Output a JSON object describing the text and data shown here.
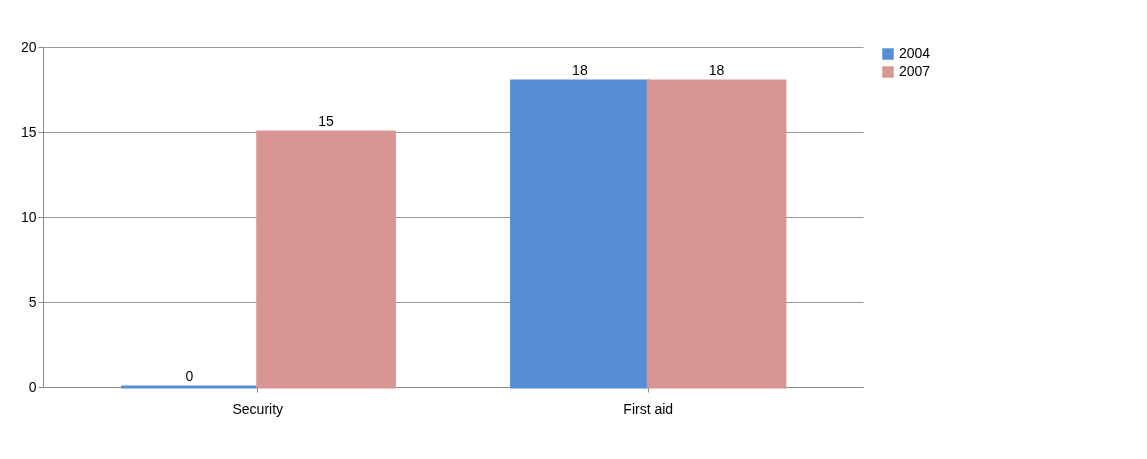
{
  "chart_data": {
    "type": "bar",
    "categories": [
      "Security",
      "First aid"
    ],
    "series": [
      {
        "name": "2004",
        "color": "#558ed5",
        "values": [
          0,
          18
        ]
      },
      {
        "name": "2007",
        "color": "#d99594",
        "values": [
          15,
          18
        ]
      }
    ],
    "ylim": [
      0,
      20
    ],
    "yticks": [
      0,
      5,
      10,
      15,
      20
    ],
    "grid": "y",
    "legend": "right",
    "data_labels": true
  }
}
